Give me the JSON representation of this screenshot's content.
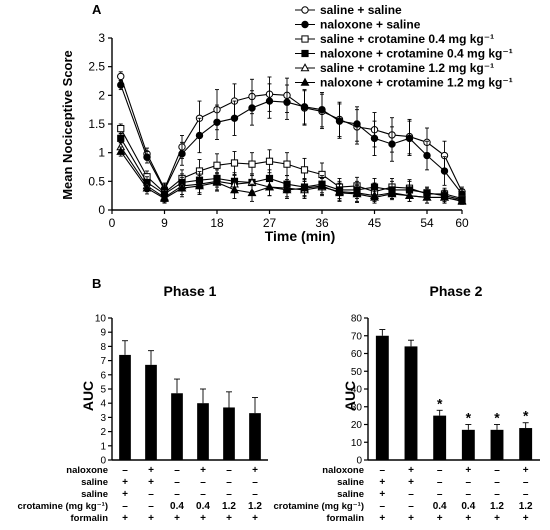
{
  "chart_data": [
    {
      "type": "line",
      "panel_label": "A",
      "xlabel": "Time (min)",
      "ylabel": "Mean Nociceptive Score",
      "xlim": [
        0,
        60
      ],
      "ylim": [
        0,
        3
      ],
      "xticks": [
        0,
        9,
        18,
        27,
        36,
        45,
        54,
        60
      ],
      "yticks": [
        "0",
        "0.5",
        "1",
        "1.5",
        "2",
        "2.5",
        "3"
      ],
      "legend_position": "top-right",
      "x": [
        1.5,
        6,
        9,
        12,
        15,
        18,
        21,
        24,
        27,
        30,
        33,
        36,
        39,
        42,
        45,
        48,
        51,
        54,
        57,
        60
      ],
      "series": [
        {
          "name": "saline + saline",
          "marker": "circle",
          "filled": false,
          "values": [
            2.33,
            0.98,
            0.37,
            1.1,
            1.6,
            1.75,
            1.9,
            1.98,
            2.02,
            2.0,
            1.78,
            1.72,
            1.58,
            1.45,
            1.4,
            1.31,
            1.28,
            1.18,
            0.95,
            0.32
          ],
          "errors": [
            0.08,
            0.1,
            0.1,
            0.2,
            0.3,
            0.35,
            0.3,
            0.3,
            0.3,
            0.3,
            0.3,
            0.3,
            0.3,
            0.3,
            0.3,
            0.3,
            0.3,
            0.25,
            0.25,
            0.08
          ]
        },
        {
          "name": "naloxone + saline",
          "marker": "circle",
          "filled": true,
          "values": [
            2.18,
            0.92,
            0.35,
            0.98,
            1.3,
            1.53,
            1.6,
            1.78,
            1.9,
            1.88,
            1.8,
            1.75,
            1.55,
            1.5,
            1.25,
            1.15,
            1.25,
            0.95,
            0.68,
            0.28
          ],
          "errors": [
            0.08,
            0.1,
            0.1,
            0.2,
            0.3,
            0.3,
            0.3,
            0.3,
            0.3,
            0.3,
            0.3,
            0.3,
            0.3,
            0.3,
            0.3,
            0.3,
            0.3,
            0.25,
            0.25,
            0.08
          ]
        },
        {
          "name": "saline + crotamine 0.4 mg kg⁻¹",
          "marker": "square",
          "filled": false,
          "values": [
            1.42,
            0.58,
            0.3,
            0.55,
            0.68,
            0.78,
            0.82,
            0.8,
            0.85,
            0.8,
            0.7,
            0.62,
            0.4,
            0.42,
            0.32,
            0.4,
            0.38,
            0.28,
            0.28,
            0.2
          ],
          "errors": [
            0.08,
            0.1,
            0.1,
            0.15,
            0.2,
            0.2,
            0.2,
            0.2,
            0.2,
            0.2,
            0.2,
            0.2,
            0.15,
            0.15,
            0.15,
            0.15,
            0.15,
            0.1,
            0.1,
            0.05
          ]
        },
        {
          "name": "naloxone + crotamine 0.4 mg kg⁻¹",
          "marker": "square",
          "filled": true,
          "values": [
            1.25,
            0.48,
            0.28,
            0.48,
            0.52,
            0.55,
            0.5,
            0.48,
            0.55,
            0.45,
            0.4,
            0.45,
            0.35,
            0.35,
            0.4,
            0.35,
            0.35,
            0.3,
            0.25,
            0.18
          ],
          "errors": [
            0.08,
            0.1,
            0.1,
            0.15,
            0.15,
            0.15,
            0.15,
            0.15,
            0.15,
            0.15,
            0.15,
            0.15,
            0.15,
            0.15,
            0.15,
            0.15,
            0.15,
            0.1,
            0.1,
            0.05
          ]
        },
        {
          "name": "saline + crotamine 1.2 mg kg⁻¹",
          "marker": "triangle",
          "filled": false,
          "values": [
            1.1,
            0.42,
            0.22,
            0.42,
            0.45,
            0.5,
            0.45,
            0.48,
            0.4,
            0.38,
            0.35,
            0.4,
            0.32,
            0.3,
            0.25,
            0.3,
            0.25,
            0.22,
            0.22,
            0.16
          ],
          "errors": [
            0.08,
            0.1,
            0.08,
            0.15,
            0.15,
            0.15,
            0.15,
            0.15,
            0.15,
            0.15,
            0.15,
            0.15,
            0.15,
            0.15,
            0.1,
            0.1,
            0.1,
            0.1,
            0.1,
            0.05
          ]
        },
        {
          "name": "naloxone + crotamine 1.2 mg kg⁻¹",
          "marker": "triangle",
          "filled": true,
          "values": [
            1.02,
            0.38,
            0.2,
            0.38,
            0.42,
            0.48,
            0.35,
            0.3,
            0.4,
            0.35,
            0.38,
            0.42,
            0.3,
            0.28,
            0.22,
            0.28,
            0.25,
            0.22,
            0.22,
            0.15
          ],
          "errors": [
            0.08,
            0.1,
            0.08,
            0.15,
            0.15,
            0.15,
            0.15,
            0.15,
            0.15,
            0.15,
            0.15,
            0.15,
            0.15,
            0.15,
            0.1,
            0.1,
            0.1,
            0.1,
            0.1,
            0.05
          ]
        }
      ]
    },
    {
      "type": "bar",
      "panel_label": "B",
      "title": "Phase 1",
      "ylabel": "AUC",
      "ylim": [
        0,
        10
      ],
      "yticks": [
        "0",
        "1",
        "2",
        "3",
        "4",
        "5",
        "6",
        "7",
        "8",
        "9",
        "10"
      ],
      "values": [
        7.4,
        6.7,
        4.7,
        4.0,
        3.7,
        3.3
      ],
      "errors": [
        1.0,
        1.0,
        1.0,
        1.0,
        1.1,
        1.1
      ],
      "significance": [
        "",
        "",
        "",
        "",
        "",
        ""
      ]
    },
    {
      "type": "bar",
      "title": "Phase 2",
      "ylabel": "AUC",
      "ylim": [
        0,
        80
      ],
      "yticks": [
        "0",
        "10",
        "20",
        "30",
        "40",
        "50",
        "60",
        "70",
        "80"
      ],
      "values": [
        70,
        64,
        25,
        17,
        17,
        18
      ],
      "errors": [
        3.5,
        3.5,
        3,
        3,
        3,
        3
      ],
      "significance": [
        "",
        "",
        "*",
        "*",
        "*",
        "*"
      ]
    }
  ],
  "treatment_table": {
    "rows": [
      {
        "label": "naloxone",
        "values": [
          "–",
          "+",
          "–",
          "+",
          "–",
          "+"
        ]
      },
      {
        "label": "saline",
        "values": [
          "+",
          "+",
          "–",
          "–",
          "–",
          "–"
        ]
      },
      {
        "label": "saline",
        "values": [
          "+",
          "–",
          "–",
          "–",
          "–",
          "–"
        ]
      },
      {
        "label": "crotamine (mg kg⁻¹)",
        "values": [
          "–",
          "–",
          "0.4",
          "0.4",
          "1.2",
          "1.2"
        ]
      },
      {
        "label": "formalin",
        "values": [
          "+",
          "+",
          "+",
          "+",
          "+",
          "+"
        ]
      }
    ]
  }
}
